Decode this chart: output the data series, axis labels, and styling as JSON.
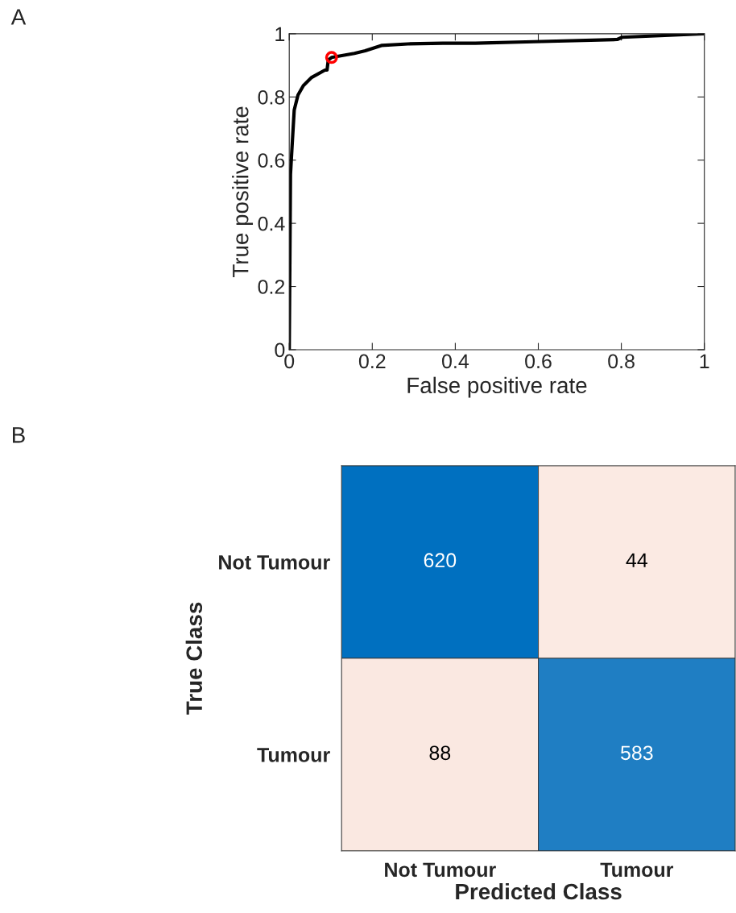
{
  "chart_data": [
    {
      "type": "line",
      "xlabel": "False positive rate",
      "ylabel": "True positive rate",
      "annotations": [
        "A"
      ],
      "xlim": [
        0,
        1
      ],
      "ylim": [
        0,
        1
      ],
      "xticks": [
        0,
        0.2,
        0.4,
        0.6,
        0.8,
        1
      ],
      "yticks": [
        0,
        0.2,
        0.4,
        0.6,
        0.8,
        1
      ],
      "grid": false,
      "legend": false,
      "series": [
        {
          "type": "line",
          "color": "#000000",
          "x": [
            0,
            0.003,
            0.007,
            0.012,
            0.021,
            0.034,
            0.053,
            0.086,
            0.091,
            0.094,
            0.102,
            0.157,
            0.183,
            0.222,
            0.286,
            0.37,
            0.448,
            0.589,
            0.79,
            0.802,
            0.996,
            1
          ],
          "values": [
            0,
            0.555,
            0.648,
            0.759,
            0.806,
            0.836,
            0.861,
            0.885,
            0.885,
            0.917,
            0.925,
            0.938,
            0.946,
            0.963,
            0.968,
            0.97,
            0.97,
            0.975,
            0.982,
            0.989,
            1.0,
            1
          ]
        },
        {
          "type": "scatter",
          "color": "#ff0000",
          "marker": "circle",
          "x": [
            0.102
          ],
          "values": [
            0.925
          ]
        }
      ]
    },
    {
      "type": "heatmap",
      "xlabel": "Predicted Class",
      "ylabel": "True Class",
      "annotations": [
        "B"
      ],
      "categories": [
        "Not Tumour",
        "Tumour"
      ],
      "y_categories": [
        "Not Tumour",
        "Tumour"
      ],
      "cells": [
        [
          620,
          44
        ],
        [
          88,
          583
        ]
      ],
      "data_labels": true
    }
  ]
}
